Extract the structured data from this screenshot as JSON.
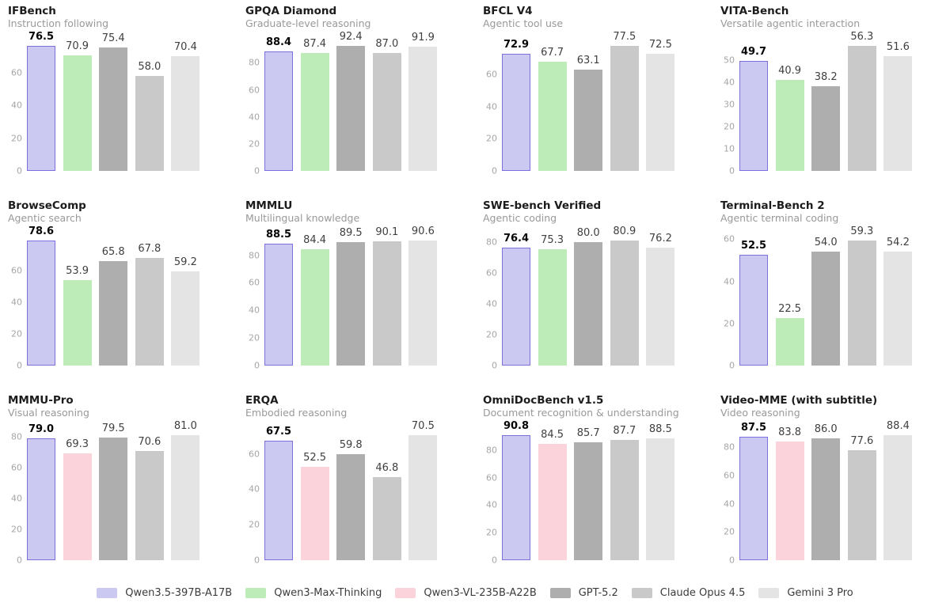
{
  "models": [
    {
      "name": "Qwen3.5-397B-A17B",
      "fill": "#cbc8f2",
      "border": "#7b70e0",
      "highlight": true
    },
    {
      "name": "Qwen3-Max-Thinking",
      "fill": "#bdecb8"
    },
    {
      "name": "Qwen3-VL-235B-A22B",
      "fill": "#fbd3da"
    },
    {
      "name": "GPT-5.2",
      "fill": "#aeaeae"
    },
    {
      "name": "Claude Opus 4.5",
      "fill": "#c9c9c9"
    },
    {
      "name": "Gemini 3 Pro",
      "fill": "#e4e4e4"
    }
  ],
  "chart_data": [
    {
      "type": "bar",
      "title": "IFBench",
      "subtitle": "Instruction following",
      "yticks": [
        0,
        20,
        40,
        60
      ],
      "grid": false,
      "legend_position": "bottom-figure",
      "bars": [
        {
          "model": "Qwen3.5-397B-A17B",
          "value": 76.5
        },
        {
          "model": "Qwen3-Max-Thinking",
          "value": 70.9
        },
        {
          "model": "GPT-5.2",
          "value": 75.4
        },
        {
          "model": "Claude Opus 4.5",
          "value": 58.0
        },
        {
          "model": "Gemini 3 Pro",
          "value": 70.4
        }
      ]
    },
    {
      "type": "bar",
      "title": "GPQA Diamond",
      "subtitle": "Graduate-level reasoning",
      "yticks": [
        0,
        20,
        40,
        60,
        80
      ],
      "grid": false,
      "bars": [
        {
          "model": "Qwen3.5-397B-A17B",
          "value": 88.4
        },
        {
          "model": "Qwen3-Max-Thinking",
          "value": 87.4
        },
        {
          "model": "GPT-5.2",
          "value": 92.4
        },
        {
          "model": "Claude Opus 4.5",
          "value": 87.0
        },
        {
          "model": "Gemini 3 Pro",
          "value": 91.9
        }
      ]
    },
    {
      "type": "bar",
      "title": "BFCL V4",
      "subtitle": "Agentic tool use",
      "yticks": [
        0,
        20,
        40,
        60
      ],
      "grid": false,
      "bars": [
        {
          "model": "Qwen3.5-397B-A17B",
          "value": 72.9
        },
        {
          "model": "Qwen3-Max-Thinking",
          "value": 67.7
        },
        {
          "model": "GPT-5.2",
          "value": 63.1
        },
        {
          "model": "Claude Opus 4.5",
          "value": 77.5
        },
        {
          "model": "Gemini 3 Pro",
          "value": 72.5
        }
      ]
    },
    {
      "type": "bar",
      "title": "VITA-Bench",
      "subtitle": "Versatile agentic interaction",
      "yticks": [
        0,
        10,
        20,
        30,
        40,
        50
      ],
      "grid": false,
      "bars": [
        {
          "model": "Qwen3.5-397B-A17B",
          "value": 49.7
        },
        {
          "model": "Qwen3-Max-Thinking",
          "value": 40.9
        },
        {
          "model": "GPT-5.2",
          "value": 38.2
        },
        {
          "model": "Claude Opus 4.5",
          "value": 56.3
        },
        {
          "model": "Gemini 3 Pro",
          "value": 51.6
        }
      ]
    },
    {
      "type": "bar",
      "title": "BrowseComp",
      "subtitle": "Agentic search",
      "yticks": [
        0,
        20,
        40,
        60
      ],
      "grid": false,
      "bars": [
        {
          "model": "Qwen3.5-397B-A17B",
          "value": 78.6
        },
        {
          "model": "Qwen3-Max-Thinking",
          "value": 53.9
        },
        {
          "model": "GPT-5.2",
          "value": 65.8
        },
        {
          "model": "Claude Opus 4.5",
          "value": 67.8
        },
        {
          "model": "Gemini 3 Pro",
          "value": 59.2
        }
      ]
    },
    {
      "type": "bar",
      "title": "MMMLU",
      "subtitle": "Multilingual knowledge",
      "yticks": [
        0,
        20,
        40,
        60,
        80
      ],
      "grid": false,
      "bars": [
        {
          "model": "Qwen3.5-397B-A17B",
          "value": 88.5
        },
        {
          "model": "Qwen3-Max-Thinking",
          "value": 84.4
        },
        {
          "model": "GPT-5.2",
          "value": 89.5
        },
        {
          "model": "Claude Opus 4.5",
          "value": 90.1
        },
        {
          "model": "Gemini 3 Pro",
          "value": 90.6
        }
      ]
    },
    {
      "type": "bar",
      "title": "SWE-bench Verified",
      "subtitle": "Agentic coding",
      "yticks": [
        0,
        20,
        40,
        60,
        80
      ],
      "grid": false,
      "bars": [
        {
          "model": "Qwen3.5-397B-A17B",
          "value": 76.4
        },
        {
          "model": "Qwen3-Max-Thinking",
          "value": 75.3
        },
        {
          "model": "GPT-5.2",
          "value": 80.0
        },
        {
          "model": "Claude Opus 4.5",
          "value": 80.9
        },
        {
          "model": "Gemini 3 Pro",
          "value": 76.2
        }
      ]
    },
    {
      "type": "bar",
      "title": "Terminal-Bench 2",
      "subtitle": "Agentic terminal coding",
      "yticks": [
        0,
        20,
        40,
        60
      ],
      "grid": false,
      "bars": [
        {
          "model": "Qwen3.5-397B-A17B",
          "value": 52.5
        },
        {
          "model": "Qwen3-Max-Thinking",
          "value": 22.5
        },
        {
          "model": "GPT-5.2",
          "value": 54.0
        },
        {
          "model": "Claude Opus 4.5",
          "value": 59.3
        },
        {
          "model": "Gemini 3 Pro",
          "value": 54.2
        }
      ]
    },
    {
      "type": "bar",
      "title": "MMMU-Pro",
      "subtitle": "Visual reasoning",
      "yticks": [
        0,
        20,
        40,
        60,
        80
      ],
      "grid": false,
      "bars": [
        {
          "model": "Qwen3.5-397B-A17B",
          "value": 79.0
        },
        {
          "model": "Qwen3-VL-235B-A22B",
          "value": 69.3
        },
        {
          "model": "GPT-5.2",
          "value": 79.5
        },
        {
          "model": "Claude Opus 4.5",
          "value": 70.6
        },
        {
          "model": "Gemini 3 Pro",
          "value": 81.0
        }
      ]
    },
    {
      "type": "bar",
      "title": "ERQA",
      "subtitle": "Embodied reasoning",
      "yticks": [
        0,
        20,
        40,
        60
      ],
      "grid": false,
      "bars": [
        {
          "model": "Qwen3.5-397B-A17B",
          "value": 67.5
        },
        {
          "model": "Qwen3-VL-235B-A22B",
          "value": 52.5
        },
        {
          "model": "GPT-5.2",
          "value": 59.8
        },
        {
          "model": "Claude Opus 4.5",
          "value": 46.8
        },
        {
          "model": "Gemini 3 Pro",
          "value": 70.5
        }
      ]
    },
    {
      "type": "bar",
      "title": "OmniDocBench v1.5",
      "subtitle": "Document recognition & understanding",
      "yticks": [
        0,
        20,
        40,
        60,
        80
      ],
      "grid": false,
      "bars": [
        {
          "model": "Qwen3.5-397B-A17B",
          "value": 90.8
        },
        {
          "model": "Qwen3-VL-235B-A22B",
          "value": 84.5
        },
        {
          "model": "GPT-5.2",
          "value": 85.7
        },
        {
          "model": "Claude Opus 4.5",
          "value": 87.7
        },
        {
          "model": "Gemini 3 Pro",
          "value": 88.5
        }
      ]
    },
    {
      "type": "bar",
      "title": "Video-MME (with subtitle)",
      "subtitle": "Video reasoning",
      "yticks": [
        0,
        20,
        40,
        60,
        80
      ],
      "grid": false,
      "bars": [
        {
          "model": "Qwen3.5-397B-A17B",
          "value": 87.5
        },
        {
          "model": "Qwen3-VL-235B-A22B",
          "value": 83.8
        },
        {
          "model": "GPT-5.2",
          "value": 86.0
        },
        {
          "model": "Claude Opus 4.5",
          "value": 77.6
        },
        {
          "model": "Gemini 3 Pro",
          "value": 88.4
        }
      ]
    }
  ]
}
